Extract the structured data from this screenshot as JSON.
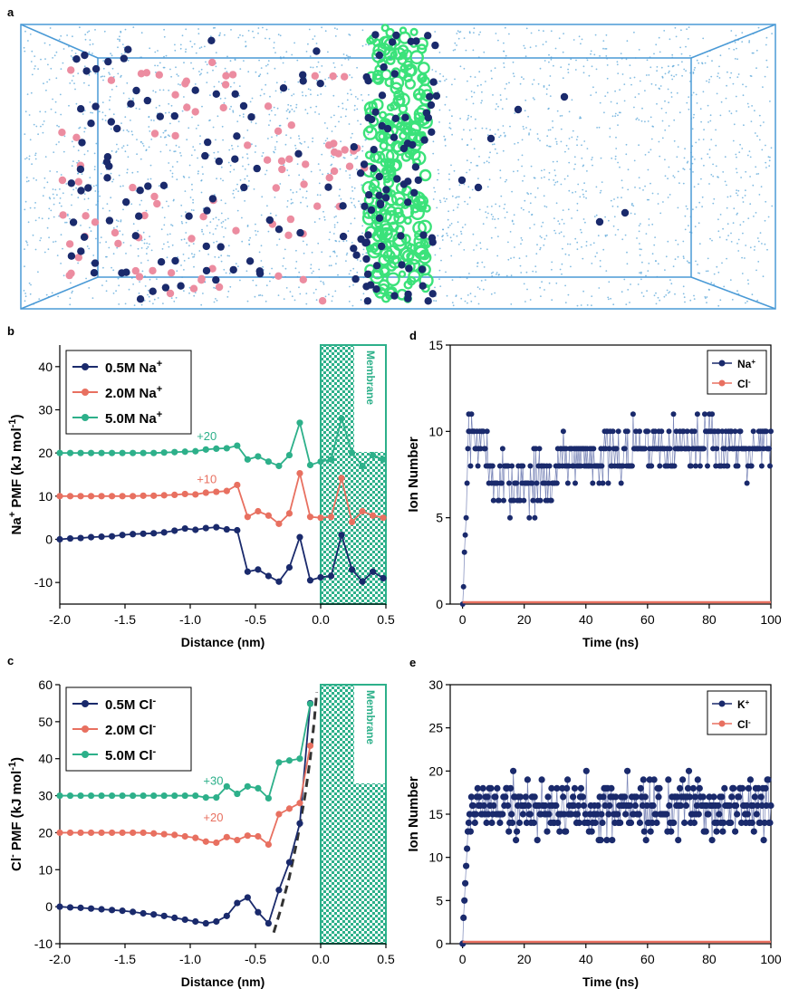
{
  "panels": {
    "a": "a",
    "b": "b",
    "c": "c",
    "d": "d",
    "e": "e"
  },
  "colors": {
    "navy": "#1a2a6c",
    "salmon": "#e87060",
    "teal": "#2db08a",
    "green": "#3be27a",
    "water": "#58a6d8",
    "pink": "#ec8ca0",
    "box": "#4a9ad6"
  },
  "chart_data": [
    {
      "id": "b",
      "type": "line",
      "xlabel": "Distance (nm)",
      "ylabel": "Na+ PMF (kJ mol-1)",
      "ylabel_parts": {
        "main": "Na",
        "sup": "+",
        "rest": " PMF (kJ mol",
        "sup2": "-1",
        "end": ")"
      },
      "xlim": [
        -2.0,
        0.5
      ],
      "ylim": [
        -15,
        45
      ],
      "xticks": [
        -2.0,
        -1.5,
        -1.0,
        -0.5,
        0.0,
        0.5
      ],
      "xtick_labels": [
        "-2.0",
        "-1.5",
        "-1.0",
        "-0.5",
        "0.0",
        "0.5"
      ],
      "yticks": [
        -10,
        0,
        10,
        20,
        30,
        40
      ],
      "ytick_labels": [
        "-10",
        "0",
        "10",
        "20",
        "30",
        "40"
      ],
      "membrane": {
        "label": "Membrane",
        "x_start": 0.0,
        "x_end": 0.5
      },
      "annotations": [
        {
          "text": "+20",
          "x": -0.95,
          "y": 23
        },
        {
          "text": "+10",
          "x": -0.95,
          "y": 13
        }
      ],
      "legend": [
        {
          "name": "0.5M Na",
          "sup": "+"
        },
        {
          "name": "2.0M Na",
          "sup": "+"
        },
        {
          "name": "5.0M Na",
          "sup": "+"
        }
      ],
      "x": [
        -2.0,
        -1.92,
        -1.84,
        -1.76,
        -1.68,
        -1.6,
        -1.52,
        -1.44,
        -1.36,
        -1.28,
        -1.2,
        -1.12,
        -1.04,
        -0.96,
        -0.88,
        -0.8,
        -0.72,
        -0.64,
        -0.56,
        -0.48,
        -0.4,
        -0.32,
        -0.24,
        -0.16,
        -0.08,
        0.0,
        0.08,
        0.16,
        0.24,
        0.32,
        0.4,
        0.48
      ],
      "series": [
        {
          "name": "0.5M Na+",
          "color": "#1a2a6c",
          "values": [
            0,
            0.2,
            0.3,
            0.5,
            0.6,
            0.7,
            1.0,
            1.2,
            1.3,
            1.4,
            1.6,
            2.0,
            2.5,
            2.2,
            2.6,
            2.8,
            2.3,
            2.1,
            -7.5,
            -7.0,
            -8.5,
            -9.8,
            -6.5,
            0.5,
            -9.5,
            -8.8,
            -8.5,
            1.0,
            -7.0,
            -9.8,
            -7.5,
            -9.0
          ]
        },
        {
          "name": "2.0M Na+",
          "color": "#e87060",
          "values": [
            10,
            10,
            10,
            10,
            10,
            10,
            10,
            10,
            10.1,
            10.1,
            10.2,
            10.3,
            10.5,
            10.4,
            10.8,
            11,
            11.2,
            12.6,
            5.2,
            6.5,
            5.5,
            3.6,
            6.0,
            15.3,
            5.2,
            5.0,
            5.2,
            14.2,
            4.0,
            6.5,
            5.5,
            5.0
          ]
        },
        {
          "name": "5.0M Na+",
          "color": "#2db08a",
          "values": [
            20,
            20,
            20,
            20,
            20,
            20,
            20,
            20,
            20,
            20,
            20.1,
            20.2,
            20.3,
            20.4,
            20.8,
            21,
            21.1,
            21.7,
            18.5,
            19.2,
            18.0,
            17.0,
            19.5,
            27.0,
            17.2,
            18.0,
            18.5,
            28.0,
            20.0,
            17.0,
            19.5,
            18.5
          ]
        }
      ]
    },
    {
      "id": "c",
      "type": "line",
      "xlabel": "Distance (nm)",
      "ylabel": "Cl- PMF (kJ mol-1)",
      "ylabel_parts": {
        "main": "Cl",
        "sup": "-",
        "rest": " PMF (kJ mol",
        "sup2": "-1",
        "end": ")"
      },
      "xlim": [
        -2.0,
        0.5
      ],
      "ylim": [
        -10,
        60
      ],
      "xticks": [
        -2.0,
        -1.5,
        -1.0,
        -0.5,
        0.0,
        0.5
      ],
      "xtick_labels": [
        "-2.0",
        "-1.5",
        "-1.0",
        "-0.5",
        "0.0",
        "0.5"
      ],
      "yticks": [
        -10,
        0,
        10,
        20,
        30,
        40,
        50,
        60
      ],
      "ytick_labels": [
        "-10",
        "0",
        "10",
        "20",
        "30",
        "40",
        "50",
        "60"
      ],
      "membrane": {
        "label": "Membrane",
        "x_start": 0.0,
        "x_end": 0.5
      },
      "annotations": [
        {
          "text": "+30",
          "x": -0.9,
          "y": 33
        },
        {
          "text": "+20",
          "x": -0.9,
          "y": 23
        }
      ],
      "legend": [
        {
          "name": "0.5M Cl",
          "sup": "-"
        },
        {
          "name": "2.0M Cl",
          "sup": "-"
        },
        {
          "name": "5.0M Cl",
          "sup": "-"
        }
      ],
      "x": [
        -2.0,
        -1.92,
        -1.84,
        -1.76,
        -1.68,
        -1.6,
        -1.52,
        -1.44,
        -1.36,
        -1.28,
        -1.2,
        -1.12,
        -1.04,
        -0.96,
        -0.88,
        -0.8,
        -0.72,
        -0.64,
        -0.56,
        -0.48,
        -0.4,
        -0.32,
        -0.24,
        -0.16,
        -0.08
      ],
      "series": [
        {
          "name": "0.5M Cl-",
          "color": "#1a2a6c",
          "values": [
            0,
            -0.2,
            -0.3,
            -0.5,
            -0.7,
            -0.9,
            -1.1,
            -1.4,
            -1.8,
            -2.1,
            -2.5,
            -3.0,
            -3.5,
            -4.0,
            -4.5,
            -4.0,
            -2.5,
            1.0,
            2.5,
            -1.5,
            -4.5,
            4.5,
            12.0,
            22.5,
            55.0
          ]
        },
        {
          "name": "2.0M Cl-",
          "color": "#e87060",
          "values": [
            20,
            20,
            20,
            20,
            20,
            20,
            20,
            20,
            20,
            19.8,
            19.6,
            19.4,
            19.0,
            18.6,
            17.6,
            17.3,
            18.8,
            18.0,
            19.2,
            19.0,
            16.8,
            25.0,
            26.5,
            28.0,
            43.5
          ]
        },
        {
          "name": "5.0M Cl-",
          "color": "#2db08a",
          "values": [
            30,
            30,
            30,
            30,
            30,
            30,
            30,
            30,
            30,
            30,
            30,
            30,
            30,
            30,
            29.5,
            29.5,
            32.5,
            30.5,
            32.5,
            32.0,
            29.3,
            39.0,
            39.5,
            40.0,
            54.8
          ]
        }
      ],
      "fit_curve": {
        "name": "fit",
        "color": "#333333",
        "style": "dashed",
        "x": [
          -0.36,
          -0.3,
          -0.24,
          -0.18,
          -0.12,
          -0.08,
          -0.05,
          -0.03
        ],
        "values": [
          -7,
          0,
          8,
          18,
          30,
          40,
          50,
          58
        ]
      }
    },
    {
      "id": "d",
      "type": "scatter",
      "xlabel": "Time (ns)",
      "ylabel": "Ion Number",
      "xlim": [
        -4,
        100
      ],
      "ylim": [
        0,
        15
      ],
      "xticks": [
        0,
        20,
        40,
        60,
        80,
        100
      ],
      "xtick_labels": [
        "0",
        "20",
        "40",
        "60",
        "80",
        "100"
      ],
      "yticks": [
        0,
        5,
        10,
        15
      ],
      "ytick_labels": [
        "0",
        "5",
        "10",
        "15"
      ],
      "legend": [
        {
          "name": "Na",
          "sup": "+"
        },
        {
          "name": "Cl",
          "sup": "-"
        }
      ],
      "generator": {
        "seed": 7,
        "samples": 330,
        "t_end": 100,
        "start": [
          0,
          1,
          3,
          4,
          5,
          7,
          9,
          11
        ],
        "segments": [
          {
            "t": [
              2,
              8
            ],
            "mean": 9.5,
            "spread": 1.5
          },
          {
            "t": [
              8,
              30
            ],
            "mean": 7.0,
            "spread": 2.0
          },
          {
            "t": [
              30,
              55
            ],
            "mean": 8.5,
            "spread": 1.5
          },
          {
            "t": [
              55,
              100
            ],
            "mean": 9.2,
            "spread": 1.4
          }
        ],
        "min": 5,
        "max": 11
      },
      "series": [
        {
          "name": "Na+",
          "color": "#1a2a6c",
          "values": "generated"
        },
        {
          "name": "Cl-",
          "color": "#e87060",
          "values": "constant 0"
        }
      ]
    },
    {
      "id": "e",
      "type": "scatter",
      "xlabel": "Time (ns)",
      "ylabel": "Ion Number",
      "xlim": [
        -4,
        100
      ],
      "ylim": [
        0,
        30
      ],
      "xticks": [
        0,
        20,
        40,
        60,
        80,
        100
      ],
      "xtick_labels": [
        "0",
        "20",
        "40",
        "60",
        "80",
        "100"
      ],
      "yticks": [
        0,
        5,
        10,
        15,
        20,
        25,
        30
      ],
      "ytick_labels": [
        "0",
        "5",
        "10",
        "15",
        "20",
        "25",
        "30"
      ],
      "legend": [
        {
          "name": "K",
          "sup": "+"
        },
        {
          "name": "Cl",
          "sup": "-"
        }
      ],
      "generator": {
        "seed": 19,
        "samples": 340,
        "t_end": 100,
        "start": [
          0,
          3,
          5,
          7,
          9,
          11,
          13
        ],
        "segments": [
          {
            "t": [
              2,
              100
            ],
            "mean": 15.8,
            "spread": 3.2
          }
        ],
        "min": 9,
        "max": 23
      },
      "series": [
        {
          "name": "K+",
          "color": "#1a2a6c",
          "values": "generated"
        },
        {
          "name": "Cl-",
          "color": "#e87060",
          "values": "constant 0"
        }
      ]
    }
  ]
}
